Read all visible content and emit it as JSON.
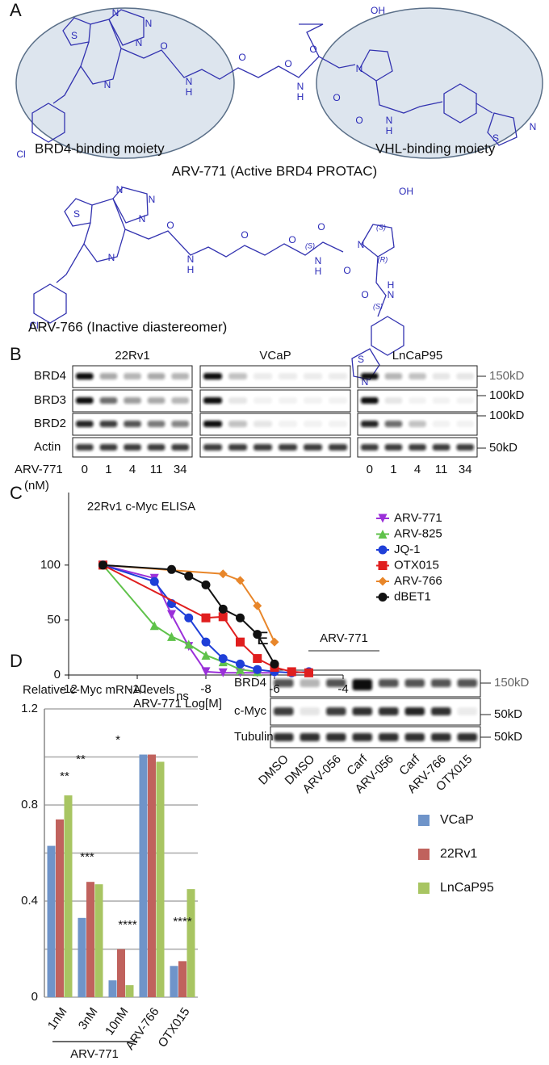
{
  "panels": [
    "A",
    "B",
    "C",
    "D",
    "E"
  ],
  "panel_a": {
    "structures": [
      {
        "atoms": [
          "S",
          "N",
          "N",
          "N",
          "N",
          "O",
          "N",
          "H",
          "O",
          "O",
          "O",
          "N",
          "H",
          "O",
          "OH",
          "N",
          "O",
          "N",
          "H",
          "S",
          "N",
          "Cl"
        ],
        "moieties": [
          "BRD4-binding moiety",
          "VHL-binding moiety"
        ],
        "caption": "ARV-771 (Active BRD4 PROTAC)"
      },
      {
        "atoms": [
          "S",
          "N",
          "N",
          "N",
          "N",
          "O",
          "N",
          "H",
          "O",
          "O",
          "O",
          "N",
          "H",
          "(S)",
          "O",
          "N",
          "(R)",
          "(S)",
          "OH",
          "O",
          "N",
          "H",
          "(S)",
          "S",
          "N",
          "Cl"
        ],
        "caption": "ARV-766 (Inactive diastereomer)"
      }
    ]
  },
  "panel_b": {
    "cell_lines": [
      "22Rv1",
      "VCaP",
      "LnCaP95"
    ],
    "proteins": [
      "BRD4",
      "BRD3",
      "BRD2",
      "Actin"
    ],
    "markers": [
      "150kD",
      "100kD",
      "100kD",
      "50kD"
    ],
    "treatment": "ARV-771",
    "unit": "(nM)",
    "doses": [
      "0",
      "1",
      "4",
      "11",
      "34"
    ]
  },
  "panel_e": {
    "treatment": "ARV-771",
    "proteins": [
      "BRD4",
      "c-Myc",
      "Tubulin"
    ],
    "markers": [
      "150kD",
      "50kD",
      "50kD"
    ],
    "lanes": [
      "DMSO",
      "DMSO",
      "ARV-056",
      "Carf",
      "ARV-056",
      "Carf",
      "ARV-766",
      "OTX015"
    ]
  },
  "chart_data": [
    {
      "type": "line",
      "title": "22Rv1 c-Myc ELISA",
      "x_label": "ARV-771 Log[M]",
      "xlim": [
        -12,
        -4
      ],
      "xticks": [
        -12,
        -10,
        -8,
        -6,
        -4
      ],
      "ylim": [
        0,
        166
      ],
      "yticks": [
        0,
        50,
        100
      ],
      "series": [
        {
          "name": "ARV-771",
          "color": "#9b30d9",
          "marker": "triangle-down",
          "x": [
            -11,
            -9.5,
            -9,
            -8.5,
            -8,
            -7.5,
            -7,
            -6.5,
            -6
          ],
          "values": [
            100,
            88,
            55,
            26,
            3,
            2,
            2,
            2,
            2
          ]
        },
        {
          "name": "ARV-825",
          "color": "#5fc24a",
          "marker": "triangle-up",
          "x": [
            -11,
            -9.5,
            -9,
            -8.5,
            -8,
            -7.5,
            -7,
            -6.5
          ],
          "values": [
            100,
            45,
            35,
            28,
            18,
            12,
            5,
            3
          ]
        },
        {
          "name": "JQ-1",
          "color": "#1f3fd8",
          "marker": "circle",
          "x": [
            -11,
            -9.5,
            -9,
            -8.5,
            -8,
            -7.5,
            -7,
            -6.5,
            -6,
            -5.5,
            -5
          ],
          "values": [
            100,
            85,
            65,
            52,
            30,
            15,
            10,
            5,
            3,
            2,
            3
          ]
        },
        {
          "name": "OTX015",
          "color": "#e01e1e",
          "marker": "square",
          "x": [
            -11,
            -8,
            -7.5,
            -7,
            -6.5,
            -6,
            -5.5,
            -5
          ],
          "values": [
            100,
            52,
            53,
            30,
            15,
            7,
            3,
            2
          ]
        },
        {
          "name": "ARV-766",
          "color": "#e8862a",
          "marker": "diamond",
          "x": [
            -11,
            -7.5,
            -7,
            -6.5,
            -6
          ],
          "values": [
            100,
            92,
            86,
            63,
            30
          ]
        },
        {
          "name": "dBET1",
          "color": "#111111",
          "marker": "circle",
          "x": [
            -11,
            -9,
            -8.5,
            -8,
            -7.5,
            -7,
            -6.5,
            -6
          ],
          "values": [
            100,
            96,
            90,
            82,
            60,
            52,
            37,
            10
          ]
        }
      ]
    },
    {
      "type": "bar",
      "title": "Relative c-Myc mRNA levels",
      "categories": [
        "1nM",
        "3nM",
        "10nM",
        "ARV-766",
        "OTX015"
      ],
      "group_label": "ARV-771",
      "ylim": [
        0,
        1.2
      ],
      "yticks": [
        0,
        0.4,
        0.8,
        1.2
      ],
      "minor_yticks": [
        0.2,
        0.6,
        1.0
      ],
      "grid": true,
      "annotations": [
        "**",
        "**",
        "*",
        "***",
        "****",
        "****",
        "ns"
      ],
      "series": [
        {
          "name": "VCaP",
          "color": "#6f94c9",
          "values": [
            0.63,
            0.33,
            0.07,
            1.01,
            0.13
          ]
        },
        {
          "name": "22Rv1",
          "color": "#c0625d",
          "values": [
            0.74,
            0.48,
            0.2,
            1.01,
            0.15
          ]
        },
        {
          "name": "LnCaP95",
          "color": "#a8c562",
          "values": [
            0.84,
            0.47,
            0.05,
            0.98,
            0.45
          ]
        }
      ]
    }
  ]
}
